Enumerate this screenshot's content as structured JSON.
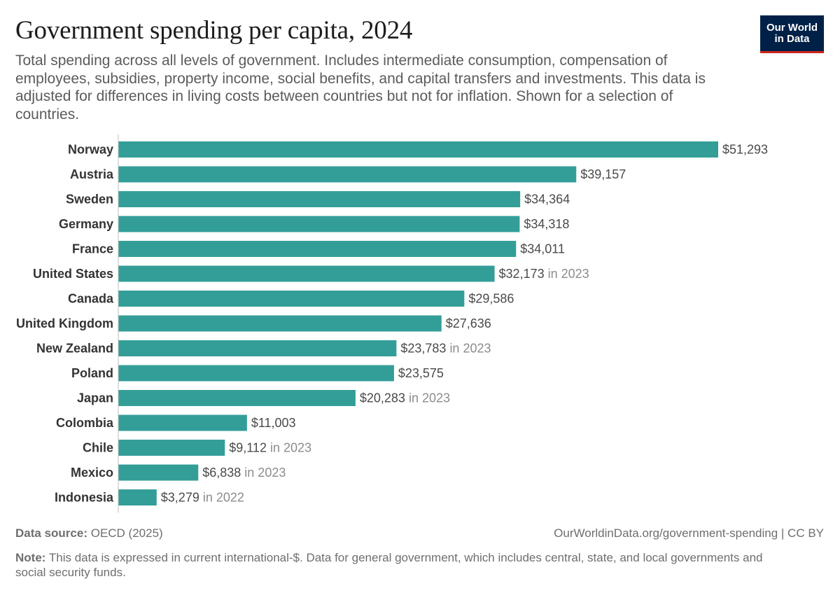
{
  "header": {
    "title": "Government spending per capita, 2024",
    "subtitle": "Total spending across all levels of government. Includes intermediate consumption, compensation of employees, subsidies, property income, social benefits, and capital transfers and investments. This data is adjusted for differences in living costs between countries but not for inflation. Shown for a selection of countries.",
    "logo_line1": "Our World",
    "logo_line2": "in Data"
  },
  "colors": {
    "bar": "#339e97",
    "label": "#333333",
    "value": "#4a4a4a",
    "year_note": "#8c8c8c",
    "axis": "#bdbdbd"
  },
  "chart_data": {
    "type": "bar",
    "orientation": "horizontal",
    "title": "Government spending per capita, 2024",
    "categories": [
      "Norway",
      "Austria",
      "Sweden",
      "Germany",
      "France",
      "United States",
      "Canada",
      "United Kingdom",
      "New Zealand",
      "Poland",
      "Japan",
      "Colombia",
      "Chile",
      "Mexico",
      "Indonesia"
    ],
    "values": [
      51293,
      39157,
      34364,
      34318,
      34011,
      32173,
      29586,
      27636,
      23783,
      23575,
      20283,
      11003,
      9112,
      6838,
      3279
    ],
    "value_labels": [
      "$51,293",
      "$39,157",
      "$34,364",
      "$34,318",
      "$34,011",
      "$32,173",
      "$29,586",
      "$27,636",
      "$23,783",
      "$23,575",
      "$20,283",
      "$11,003",
      "$9,112",
      "$6,838",
      "$3,279"
    ],
    "year_notes": [
      "",
      "",
      "",
      "",
      "",
      "in 2023",
      "",
      "",
      "in 2023",
      "",
      "in 2023",
      "",
      "in 2023",
      "in 2023",
      "in 2022"
    ],
    "xlim": [
      0,
      51293
    ],
    "unit": "current international-$"
  },
  "footer": {
    "source_label": "Data source:",
    "source_text": "OECD (2025)",
    "url": "OurWorldinData.org/government-spending | CC BY",
    "note_label": "Note:",
    "note_text": "This data is expressed in current international-$. Data for general government, which includes central, state, and local governments and social security funds."
  }
}
